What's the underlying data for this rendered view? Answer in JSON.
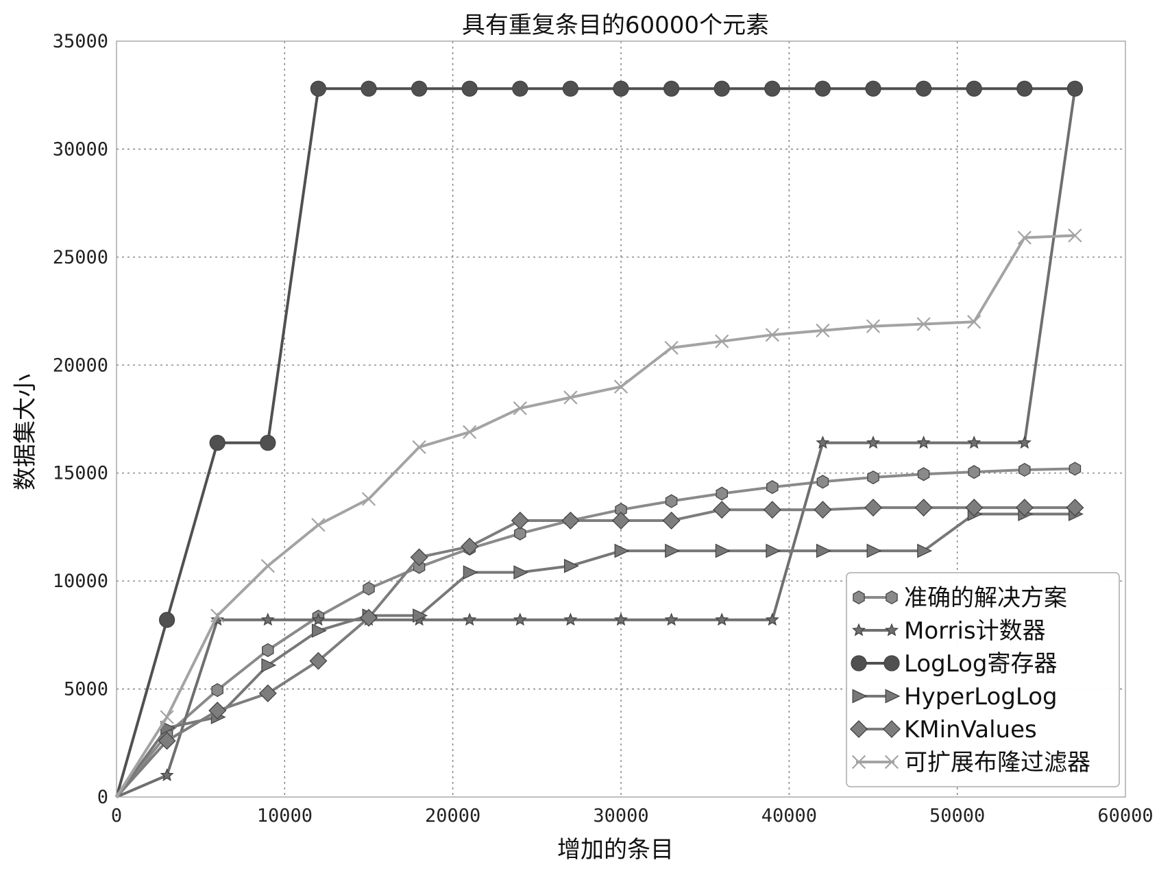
{
  "chart_data": {
    "type": "line",
    "title": "具有重复条目的60000个元素",
    "xlabel": "增加的条目",
    "ylabel": "数据集大小",
    "xlim": [
      0,
      60000
    ],
    "ylim": [
      0,
      35000
    ],
    "xticks": [
      0,
      10000,
      20000,
      30000,
      40000,
      50000,
      60000
    ],
    "yticks": [
      0,
      5000,
      10000,
      15000,
      20000,
      25000,
      30000,
      35000
    ],
    "grid": true,
    "legend": "lower-right",
    "x": [
      0,
      3000,
      6000,
      9000,
      12000,
      15000,
      18000,
      21000,
      24000,
      27000,
      30000,
      33000,
      36000,
      39000,
      42000,
      45000,
      48000,
      51000,
      54000,
      57000
    ],
    "series": [
      {
        "name": "准确的解决方案",
        "marker": "hexagon",
        "color": "#8a8a8a",
        "values": [
          0,
          2900,
          4950,
          6800,
          8350,
          9650,
          10650,
          11500,
          12200,
          12800,
          13300,
          13700,
          14050,
          14350,
          14600,
          14800,
          14950,
          15050,
          15150,
          15200
        ]
      },
      {
        "name": "Morris计数器",
        "marker": "star",
        "color": "#6f6f6f",
        "values": [
          0,
          1000,
          8200,
          8200,
          8200,
          8200,
          8200,
          8200,
          8200,
          8200,
          8200,
          8200,
          8200,
          8200,
          16400,
          16400,
          16400,
          16400,
          16400,
          32800
        ]
      },
      {
        "name": "LogLog寄存器",
        "marker": "circle",
        "color": "#505050",
        "values": [
          0,
          8200,
          16400,
          16400,
          32800,
          32800,
          32800,
          32800,
          32800,
          32800,
          32800,
          32800,
          32800,
          32800,
          32800,
          32800,
          32800,
          32800,
          32800,
          32800
        ]
      },
      {
        "name": "HyperLogLog",
        "marker": "triangle-right",
        "color": "#777777",
        "values": [
          0,
          3200,
          3700,
          6100,
          7700,
          8400,
          8400,
          10400,
          10400,
          10700,
          11400,
          11400,
          11400,
          11400,
          11400,
          11400,
          11400,
          13100,
          13100,
          13100
        ]
      },
      {
        "name": "KMinValues",
        "marker": "diamond",
        "color": "#7d7d7d",
        "values": [
          0,
          2600,
          4000,
          4800,
          6300,
          8300,
          11100,
          11600,
          12800,
          12800,
          12800,
          12800,
          13300,
          13300,
          13300,
          13400,
          13400,
          13400,
          13400,
          13400
        ]
      },
      {
        "name": "可扩展布隆过滤器",
        "marker": "x",
        "color": "#a3a3a3",
        "values": [
          0,
          3700,
          8400,
          10700,
          12600,
          13800,
          16200,
          16900,
          18000,
          18500,
          19000,
          20800,
          21100,
          21400,
          21600,
          21800,
          21900,
          22000,
          25900,
          26000
        ]
      }
    ]
  }
}
